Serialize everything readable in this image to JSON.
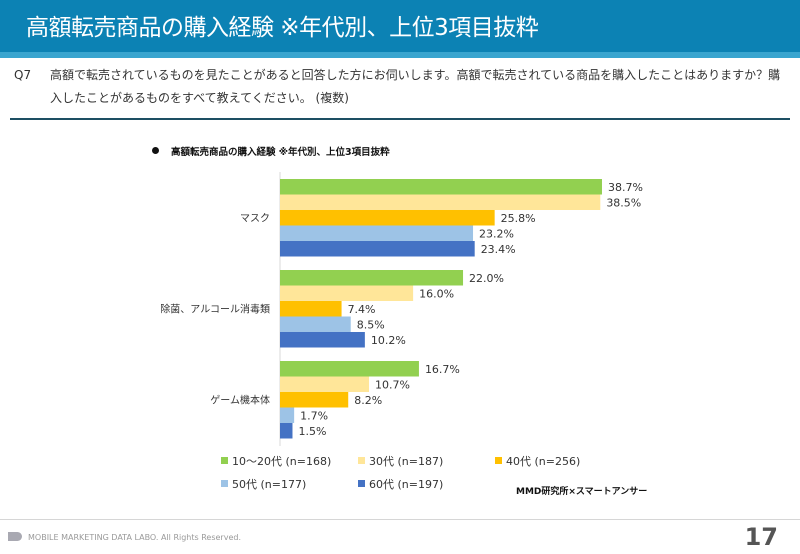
{
  "header": {
    "title": "高額転売商品の購入経験 ※年代別、上位3項目抜粋"
  },
  "question": {
    "number": "Q7",
    "text": "高額で転売されているものを見たことがあると回答した方にお伺いします。高額で転売されている商品を購入したことはありますか？購入したことがあるものをすべて教えてください。 (複数)"
  },
  "chart_data": {
    "type": "bar",
    "orientation": "horizontal",
    "title": "高額転売商品の購入経験 ※年代別、上位3項目抜粋",
    "categories": [
      "マスク",
      "除菌、アルコール消毒類",
      "ゲーム機本体"
    ],
    "series": [
      {
        "name": "10～20代 (n=168)",
        "color": "#92d050",
        "values": [
          38.7,
          22.0,
          16.7
        ],
        "labels": [
          "38.7%",
          "22.0%",
          "16.7%"
        ]
      },
      {
        "name": "30代 (n=187)",
        "color": "#ffe699",
        "values": [
          38.5,
          16.0,
          10.7
        ],
        "labels": [
          "38.5%",
          "16.0%",
          "10.7%"
        ]
      },
      {
        "name": "40代 (n=256)",
        "color": "#ffc000",
        "values": [
          25.8,
          7.4,
          8.2
        ],
        "labels": [
          "25.8%",
          "7.4%",
          "8.2%"
        ]
      },
      {
        "name": "50代 (n=177)",
        "color": "#9dc3e6",
        "values": [
          23.2,
          8.5,
          1.7
        ],
        "labels": [
          "23.2%",
          "8.5%",
          "1.7%"
        ]
      },
      {
        "name": "60代 (n=197)",
        "color": "#4472c4",
        "values": [
          23.4,
          10.2,
          1.5
        ],
        "labels": [
          "23.4%",
          "10.2%",
          "1.5%"
        ]
      }
    ],
    "xlabel": "",
    "ylabel": "",
    "xlim": [
      0,
      45
    ],
    "grid": false,
    "legend_position": "bottom",
    "unit": "%"
  },
  "source": "MMD研究所×スマートアンサー",
  "footer": {
    "copyright": "MOBILE MARKETING DATA LABO.  All Rights Reserved.",
    "page_number": "17"
  }
}
